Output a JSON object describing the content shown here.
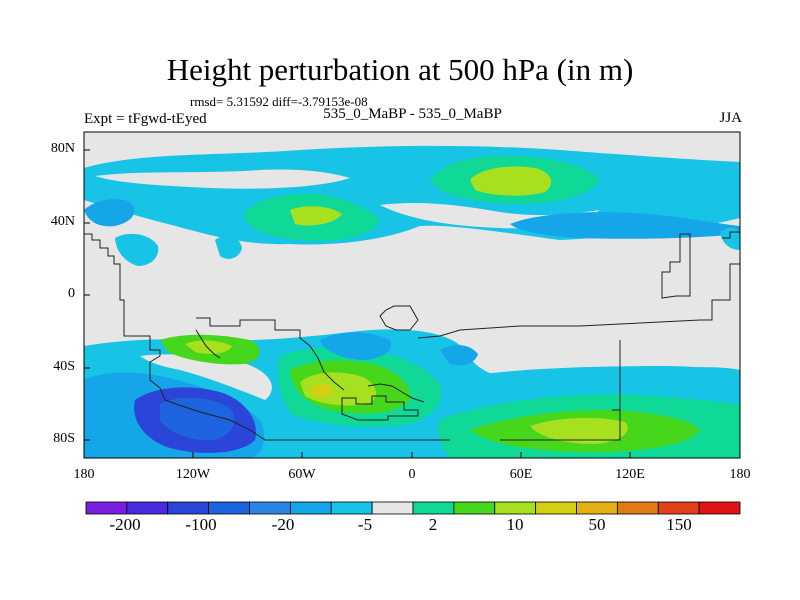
{
  "title": "Height perturbation at 500 hPa (in m)",
  "stats_line": "rmsd= 5.31592  diff=-3.79153e-08",
  "left_label": "Expt = tFgwd-tEyed",
  "center_label": "535_0_MaBP - 535_0_MaBP",
  "right_label": "JJA",
  "y_ticks": [
    "80N",
    "40N",
    "0",
    "40S",
    "80S"
  ],
  "x_ticks": [
    "180",
    "120W",
    "60W",
    "0",
    "60E",
    "120E",
    "180"
  ],
  "colorbar": {
    "colors": [
      "#7a1fe0",
      "#4a2ae0",
      "#2a45d8",
      "#1e64e0",
      "#2a86e6",
      "#14a6e8",
      "#18c4e6",
      "#e6e6e6",
      "#10d896",
      "#46d61c",
      "#a6e01e",
      "#d2cf14",
      "#e0b014",
      "#e07a14",
      "#e0401a",
      "#e01414"
    ],
    "labels": [
      "-200",
      "-100",
      "-20",
      "-5",
      "2",
      "10",
      "50",
      "150"
    ]
  }
}
